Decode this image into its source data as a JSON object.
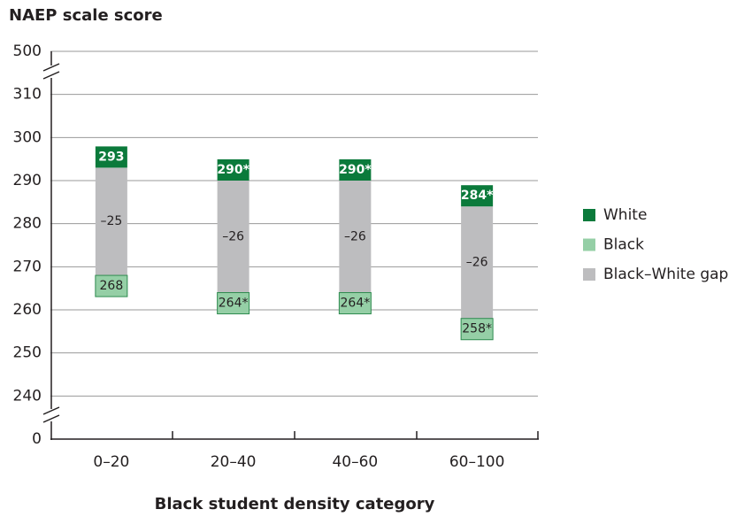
{
  "chart_data": {
    "type": "floating-range",
    "y_axis_label": "NAEP scale score",
    "x_axis_label": "Black student density category",
    "categories": [
      "0–20",
      "20–40",
      "40–60",
      "60–100"
    ],
    "series": [
      {
        "name": "White",
        "color": "#0b7a3b",
        "values": [
          293,
          290,
          290,
          284
        ],
        "value_labels": [
          "293",
          "290*",
          "290*",
          "284*"
        ]
      },
      {
        "name": "Black",
        "color": "#95cfa6",
        "values": [
          268,
          264,
          264,
          258
        ],
        "value_labels": [
          "268",
          "264*",
          "264*",
          "258*"
        ]
      },
      {
        "name": "Black–White gap",
        "color": "#bdbdbf",
        "values": [
          -25,
          -26,
          -26,
          -26
        ],
        "value_labels": [
          "–25",
          "–26",
          "–26",
          "–26"
        ]
      }
    ],
    "ylim": [
      0,
      500
    ],
    "yticks": [
      0,
      240,
      250,
      260,
      270,
      280,
      290,
      300,
      310,
      500
    ],
    "grid": true,
    "legend": "right"
  }
}
